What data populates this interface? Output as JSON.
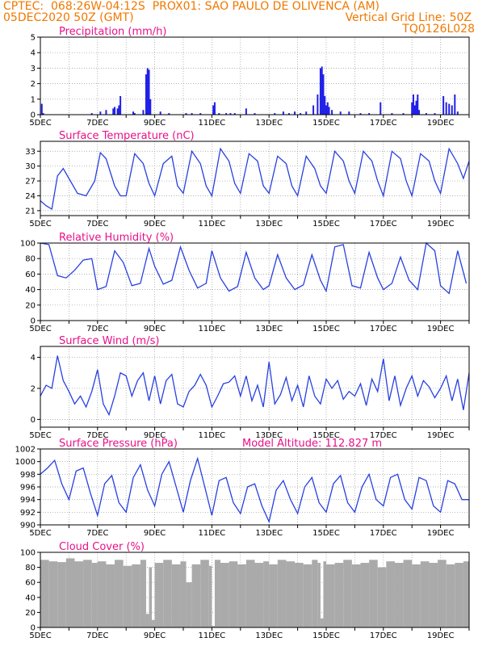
{
  "header": {
    "line1_left": "CPTEC:  068:26W-04:12S  PROX01: SAO PAULO DE OLIVENCA (AM)",
    "line2_left": "05DEC2020 50Z (GMT)",
    "line2_right": "Vertical Grid Line: 50Z",
    "line3_right": "TQ0126L028"
  },
  "colors": {
    "header": "#f07800",
    "title": "#e8108a",
    "line": "#2840e0",
    "bar": "#2020e8",
    "cloud": "#aaaaaa"
  },
  "chart_data": [
    {
      "type": "bar",
      "title": "Precipitation (mm/h)",
      "ylim": [
        0,
        5
      ],
      "yticks": [
        "0",
        "1",
        "2",
        "3",
        "4",
        "5"
      ],
      "x_start": 5,
      "x_end": 20,
      "xtick_labels": [
        "5DEC",
        "7DEC",
        "9DEC",
        "11DEC",
        "13DEC",
        "15DEC",
        "17DEC",
        "19DEC"
      ],
      "x": [
        5.05,
        5.1,
        6.8,
        7.1,
        7.3,
        7.55,
        7.6,
        7.7,
        7.75,
        7.8,
        8.25,
        8.3,
        8.6,
        8.7,
        8.75,
        8.8,
        8.85,
        9.2,
        9.5,
        10.1,
        10.3,
        10.6,
        11.05,
        11.1,
        11.25,
        11.5,
        11.65,
        11.8,
        12.2,
        12.5,
        13.2,
        13.5,
        13.7,
        13.9,
        14.1,
        14.3,
        14.55,
        14.7,
        14.8,
        14.85,
        14.9,
        14.95,
        15.0,
        15.05,
        15.1,
        15.2,
        15.5,
        15.8,
        16.2,
        16.5,
        16.9,
        17.3,
        17.7,
        18.0,
        18.05,
        18.1,
        18.15,
        18.2,
        18.25,
        18.5,
        18.8,
        19.1,
        19.2,
        19.3,
        19.4,
        19.5,
        19.6
      ],
      "values": [
        0.7,
        0.1,
        0.1,
        0.2,
        0.3,
        0.4,
        0.5,
        0.4,
        0.6,
        1.2,
        0.2,
        0.1,
        0.3,
        2.6,
        3.0,
        2.9,
        1.0,
        0.2,
        0.1,
        0.1,
        0.1,
        0.1,
        0.6,
        0.8,
        0.1,
        0.1,
        0.1,
        0.1,
        0.4,
        0.1,
        0.1,
        0.2,
        0.1,
        0.2,
        0.1,
        0.2,
        0.6,
        1.3,
        3.0,
        3.1,
        2.6,
        1.2,
        0.6,
        0.8,
        0.5,
        0.3,
        0.2,
        0.2,
        0.1,
        0.1,
        0.8,
        0.1,
        0.1,
        0.8,
        1.3,
        0.6,
        0.9,
        1.3,
        0.3,
        0.1,
        0.1,
        1.2,
        0.8,
        0.7,
        0.6,
        1.3,
        0.2
      ]
    },
    {
      "type": "line",
      "title": "Surface Temperature (nC)",
      "ylim": [
        20,
        35
      ],
      "yticks": [
        "21",
        "24",
        "27",
        "30",
        "33"
      ],
      "ytick_values": [
        21,
        24,
        27,
        30,
        33
      ],
      "x_start": 5,
      "x_end": 20,
      "xtick_labels": [
        "5DEC",
        "7DEC",
        "9DEC",
        "11DEC",
        "13DEC",
        "15DEC",
        "17DEC",
        "19DEC"
      ],
      "x": [
        5.0,
        5.2,
        5.4,
        5.6,
        5.8,
        6.0,
        6.3,
        6.6,
        6.9,
        7.1,
        7.3,
        7.6,
        7.8,
        8.0,
        8.3,
        8.6,
        8.8,
        9.0,
        9.3,
        9.6,
        9.8,
        10.0,
        10.3,
        10.6,
        10.8,
        11.0,
        11.3,
        11.6,
        11.8,
        12.0,
        12.3,
        12.6,
        12.8,
        13.0,
        13.3,
        13.6,
        13.8,
        14.0,
        14.3,
        14.6,
        14.8,
        15.0,
        15.3,
        15.6,
        15.8,
        16.0,
        16.3,
        16.6,
        16.8,
        17.0,
        17.3,
        17.6,
        17.8,
        18.0,
        18.3,
        18.6,
        18.8,
        19.0,
        19.3,
        19.6,
        19.8,
        20.0
      ],
      "values": [
        23.0,
        22.0,
        21.3,
        28.0,
        29.5,
        27.5,
        24.5,
        24.0,
        27.0,
        32.7,
        31.5,
        26.0,
        24.0,
        24.0,
        32.5,
        30.5,
        26.5,
        24.0,
        30.5,
        32.0,
        26.0,
        24.5,
        33.0,
        30.5,
        26.0,
        24.0,
        33.5,
        31.0,
        26.5,
        24.5,
        32.5,
        31.0,
        26.0,
        24.5,
        32.0,
        30.5,
        26.0,
        24.0,
        32.0,
        29.5,
        26.0,
        24.5,
        33.0,
        31.0,
        27.0,
        24.5,
        33.0,
        31.0,
        27.0,
        24.0,
        33.0,
        31.5,
        27.0,
        24.0,
        32.5,
        31.0,
        27.0,
        24.5,
        33.5,
        30.5,
        27.5,
        31.0
      ]
    },
    {
      "type": "line",
      "title": "Relative Humidity (%)",
      "ylim": [
        0,
        100
      ],
      "yticks": [
        "0",
        "20",
        "40",
        "60",
        "80",
        "100"
      ],
      "ytick_values": [
        0,
        20,
        40,
        60,
        80,
        100
      ],
      "x_start": 5,
      "x_end": 20,
      "xtick_labels": [
        "5DEC",
        "7DEC",
        "9DEC",
        "11DEC",
        "13DEC",
        "15DEC",
        "17DEC",
        "19DEC"
      ],
      "x": [
        5.0,
        5.3,
        5.6,
        5.9,
        6.2,
        6.5,
        6.8,
        7.0,
        7.3,
        7.6,
        7.9,
        8.2,
        8.5,
        8.8,
        9.0,
        9.3,
        9.6,
        9.9,
        10.2,
        10.5,
        10.8,
        11.0,
        11.3,
        11.6,
        11.9,
        12.2,
        12.5,
        12.8,
        13.0,
        13.3,
        13.6,
        13.9,
        14.2,
        14.5,
        14.8,
        15.0,
        15.3,
        15.6,
        15.9,
        16.2,
        16.5,
        16.8,
        17.0,
        17.3,
        17.6,
        17.9,
        18.2,
        18.5,
        18.8,
        19.0,
        19.3,
        19.6,
        19.9
      ],
      "values": [
        100,
        98,
        58,
        55,
        65,
        78,
        80,
        40,
        44,
        90,
        75,
        45,
        48,
        93,
        70,
        47,
        52,
        95,
        65,
        42,
        48,
        90,
        55,
        38,
        44,
        88,
        55,
        40,
        45,
        85,
        55,
        40,
        46,
        85,
        52,
        38,
        95,
        98,
        45,
        42,
        88,
        55,
        40,
        48,
        82,
        52,
        40,
        100,
        90,
        45,
        35,
        90,
        48
      ]
    },
    {
      "type": "line",
      "title": "Surface Wind (m/s)",
      "ylim": [
        -0.5,
        4.7
      ],
      "yticks": [
        "0",
        "2",
        "4"
      ],
      "ytick_values": [
        0,
        2,
        4
      ],
      "x_start": 5,
      "x_end": 20,
      "xtick_labels": [
        "5DEC",
        "7DEC",
        "9DEC",
        "11DEC",
        "13DEC",
        "15DEC",
        "17DEC",
        "19DEC"
      ],
      "x": [
        5.0,
        5.2,
        5.4,
        5.6,
        5.8,
        6.0,
        6.2,
        6.4,
        6.6,
        6.8,
        7.0,
        7.2,
        7.4,
        7.6,
        7.8,
        8.0,
        8.2,
        8.4,
        8.6,
        8.8,
        9.0,
        9.2,
        9.4,
        9.6,
        9.8,
        10.0,
        10.2,
        10.4,
        10.6,
        10.8,
        11.0,
        11.2,
        11.4,
        11.6,
        11.8,
        12.0,
        12.2,
        12.4,
        12.6,
        12.8,
        13.0,
        13.2,
        13.4,
        13.6,
        13.8,
        14.0,
        14.2,
        14.4,
        14.6,
        14.8,
        15.0,
        15.2,
        15.4,
        15.6,
        15.8,
        16.0,
        16.2,
        16.4,
        16.6,
        16.8,
        17.0,
        17.2,
        17.4,
        17.6,
        17.8,
        18.0,
        18.2,
        18.4,
        18.6,
        18.8,
        19.0,
        19.2,
        19.4,
        19.6,
        19.8,
        20.0
      ],
      "values": [
        1.5,
        2.2,
        2.0,
        4.1,
        2.5,
        1.8,
        1.0,
        1.5,
        0.8,
        1.8,
        3.2,
        1.0,
        0.3,
        1.5,
        3.0,
        2.8,
        1.5,
        2.5,
        3.0,
        1.2,
        2.8,
        1.0,
        2.5,
        2.9,
        1.0,
        0.8,
        1.8,
        2.2,
        2.9,
        2.2,
        0.8,
        1.5,
        2.3,
        2.4,
        2.8,
        1.5,
        2.8,
        1.2,
        2.2,
        0.8,
        3.7,
        1.0,
        1.6,
        2.7,
        1.2,
        2.2,
        0.8,
        2.8,
        1.5,
        1.0,
        2.6,
        2.0,
        2.5,
        1.3,
        1.8,
        1.5,
        2.3,
        0.9,
        2.6,
        1.8,
        3.9,
        1.2,
        2.8,
        0.9,
        2.0,
        2.8,
        1.5,
        2.5,
        2.1,
        1.4,
        2.0,
        2.8,
        1.2,
        2.6,
        0.6,
        3.0
      ]
    },
    {
      "type": "line",
      "title": "Surface Pressure (hPa)",
      "annotation": "Model Altitude: 112.827 m",
      "ylim": [
        990,
        1002
      ],
      "yticks": [
        "990",
        "992",
        "994",
        "996",
        "998",
        "1000",
        "1002"
      ],
      "ytick_values": [
        990,
        992,
        994,
        996,
        998,
        1000,
        1002
      ],
      "x_start": 5,
      "x_end": 20,
      "xtick_labels": [
        "5DEC",
        "7DEC",
        "9DEC",
        "11DEC",
        "13DEC",
        "15DEC",
        "17DEC",
        "19DEC"
      ],
      "x": [
        5.0,
        5.25,
        5.5,
        5.75,
        6.0,
        6.25,
        6.5,
        6.75,
        7.0,
        7.25,
        7.5,
        7.75,
        8.0,
        8.25,
        8.5,
        8.75,
        9.0,
        9.25,
        9.5,
        9.75,
        10.0,
        10.25,
        10.5,
        10.75,
        11.0,
        11.25,
        11.5,
        11.75,
        12.0,
        12.25,
        12.5,
        12.75,
        13.0,
        13.25,
        13.5,
        13.75,
        14.0,
        14.25,
        14.5,
        14.75,
        15.0,
        15.25,
        15.5,
        15.75,
        16.0,
        16.25,
        16.5,
        16.75,
        17.0,
        17.25,
        17.5,
        17.75,
        18.0,
        18.25,
        18.5,
        18.75,
        19.0,
        19.25,
        19.5,
        19.75,
        20.0
      ],
      "values": [
        998.0,
        999.0,
        1000.2,
        996.5,
        994.0,
        998.5,
        999.0,
        995.0,
        991.5,
        996.5,
        997.8,
        993.5,
        992.0,
        997.5,
        999.5,
        995.5,
        993.0,
        998.0,
        1000.0,
        996.0,
        992.0,
        997.0,
        1000.5,
        996.0,
        991.5,
        997.0,
        997.5,
        993.5,
        991.8,
        996.0,
        996.5,
        993.0,
        990.5,
        995.5,
        997.0,
        994.0,
        991.8,
        996.0,
        997.5,
        993.5,
        992.0,
        996.5,
        997.8,
        993.5,
        992.0,
        996.0,
        998.0,
        994.0,
        993.0,
        997.5,
        998.0,
        994.0,
        992.5,
        997.5,
        997.0,
        993.0,
        992.0,
        997.0,
        996.5,
        994.0,
        994.0
      ]
    },
    {
      "type": "bar",
      "title": "Cloud Cover (%)",
      "ylim": [
        0,
        100
      ],
      "yticks": [
        "0",
        "20",
        "40",
        "60",
        "80",
        "100"
      ],
      "x_start": 5,
      "x_end": 20,
      "xtick_labels": [
        "5DEC",
        "7DEC",
        "9DEC",
        "11DEC",
        "13DEC",
        "15DEC",
        "17DEC",
        "19DEC"
      ],
      "x": [
        5.0,
        5.3,
        5.6,
        5.9,
        6.2,
        6.5,
        6.8,
        7.0,
        7.3,
        7.6,
        7.9,
        8.2,
        8.5,
        8.7,
        8.8,
        8.9,
        9.0,
        9.3,
        9.6,
        9.9,
        10.1,
        10.3,
        10.6,
        10.9,
        11.0,
        11.1,
        11.3,
        11.6,
        11.9,
        12.2,
        12.5,
        12.8,
        13.0,
        13.3,
        13.6,
        13.9,
        14.2,
        14.5,
        14.7,
        14.8,
        14.9,
        15.0,
        15.3,
        15.6,
        15.9,
        16.2,
        16.5,
        16.8,
        17.1,
        17.4,
        17.7,
        18.0,
        18.3,
        18.6,
        18.9,
        19.2,
        19.5,
        19.8
      ],
      "values": [
        90,
        88,
        87,
        92,
        88,
        90,
        86,
        88,
        84,
        90,
        82,
        84,
        90,
        18,
        80,
        10,
        86,
        90,
        84,
        88,
        60,
        84,
        90,
        82,
        2,
        90,
        86,
        88,
        84,
        90,
        86,
        88,
        84,
        90,
        88,
        86,
        84,
        90,
        86,
        12,
        88,
        84,
        86,
        90,
        84,
        86,
        90,
        80,
        88,
        86,
        90,
        84,
        88,
        86,
        90,
        84,
        86,
        88
      ]
    }
  ]
}
